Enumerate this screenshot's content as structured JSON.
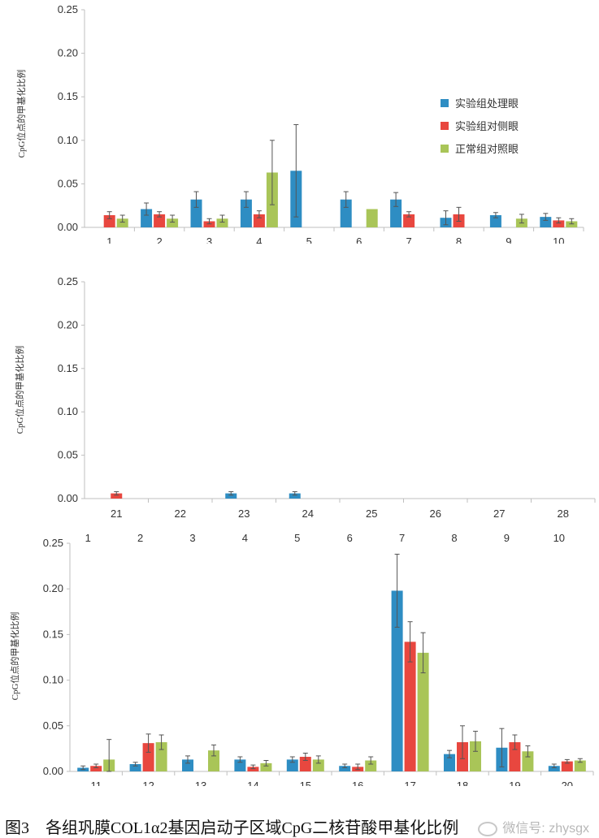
{
  "colors": {
    "s1": "#2e8dc3",
    "s2": "#e8473f",
    "s3": "#a9c558",
    "axis": "#bfbfbf",
    "err": "#555555"
  },
  "legend": [
    "实验组处理眼",
    "实验组对侧眼",
    "正常组对照眼"
  ],
  "caption": "图3　各组巩膜COL1α2基因启动子区域CpG二核苷酸甲基化比例",
  "watermark": "微信号: zhysgx",
  "chart_data": [
    {
      "type": "bar",
      "title": "",
      "ylabel": "CpG位点的甲基化比例",
      "ylim": [
        0,
        0.25
      ],
      "yticks": [
        "0.00",
        "0.05",
        "0.10",
        "0.15",
        "0.20",
        "0.25"
      ],
      "categories": [
        "1",
        "2",
        "3",
        "4",
        "5",
        "6",
        "7",
        "8",
        "9",
        "10"
      ],
      "series": [
        {
          "name": "实验组处理眼",
          "values": [
            null,
            0.021,
            0.032,
            0.032,
            0.065,
            0.032,
            0.032,
            0.011,
            0.014,
            0.012
          ],
          "errors": [
            0,
            0.007,
            0.009,
            0.009,
            0.053,
            0.009,
            0.008,
            0.008,
            0.003,
            0.004
          ]
        },
        {
          "name": "实验组对侧眼",
          "values": [
            0.014,
            0.015,
            0.007,
            0.015,
            null,
            null,
            0.015,
            0.015,
            null,
            0.008
          ],
          "errors": [
            0.004,
            0.003,
            0.003,
            0.004,
            0,
            0,
            0.003,
            0.008,
            0,
            0.003
          ]
        },
        {
          "name": "正常组对照眼",
          "values": [
            0.01,
            0.01,
            0.01,
            0.063,
            null,
            0.021,
            null,
            null,
            0.01,
            0.007
          ],
          "errors": [
            0.004,
            0.004,
            0.004,
            0.037,
            0,
            0,
            0,
            0,
            0.005,
            0.003
          ]
        }
      ],
      "legend_position": "top-right"
    },
    {
      "type": "bar",
      "title": "",
      "ylabel": "CpG位点的甲基化比例",
      "ylim": [
        0,
        0.25
      ],
      "yticks": [
        "0.00",
        "0.05",
        "0.10",
        "0.15",
        "0.20",
        "0.25"
      ],
      "categories": [
        "21",
        "22",
        "23",
        "24",
        "25",
        "26",
        "27",
        "28"
      ],
      "series": [
        {
          "name": "实验组处理眼",
          "values": [
            null,
            null,
            0.006,
            0.006,
            null,
            null,
            null,
            null
          ],
          "errors": [
            0,
            0,
            0.002,
            0.002,
            0,
            0,
            0,
            0
          ]
        },
        {
          "name": "实验组对侧眼",
          "values": [
            0.006,
            null,
            null,
            null,
            null,
            null,
            null,
            null
          ],
          "errors": [
            0.002,
            0,
            0,
            0,
            0,
            0,
            0,
            0
          ]
        },
        {
          "name": "正常组对照眼",
          "values": [
            null,
            null,
            null,
            null,
            null,
            null,
            null,
            null
          ],
          "errors": [
            0,
            0,
            0,
            0,
            0,
            0,
            0,
            0
          ]
        }
      ]
    },
    {
      "type": "bar",
      "title": "",
      "ylabel": "CpG位点的甲基化比例",
      "ylim": [
        0,
        0.25
      ],
      "yticks": [
        "0.00",
        "0.05",
        "0.10",
        "0.15",
        "0.20",
        "0.25"
      ],
      "top_labels": [
        "1",
        "2",
        "3",
        "4",
        "5",
        "6",
        "7",
        "8",
        "9",
        "10"
      ],
      "categories": [
        "11",
        "12",
        "13",
        "14",
        "15",
        "16",
        "17",
        "18",
        "19",
        "20"
      ],
      "series": [
        {
          "name": "实验组处理眼",
          "values": [
            0.004,
            0.008,
            0.013,
            0.013,
            0.013,
            0.006,
            0.198,
            0.019,
            0.026,
            0.006
          ],
          "errors": [
            0.002,
            0.002,
            0.004,
            0.003,
            0.003,
            0.002,
            0.04,
            0.004,
            0.021,
            0.002
          ]
        },
        {
          "name": "实验组对侧眼",
          "values": [
            0.006,
            0.031,
            null,
            0.005,
            0.016,
            0.005,
            0.142,
            0.032,
            0.032,
            0.011
          ],
          "errors": [
            0.002,
            0.01,
            0,
            0.002,
            0.004,
            0.003,
            0.022,
            0.018,
            0.008,
            0.002
          ]
        },
        {
          "name": "正常组对照眼",
          "values": [
            0.013,
            0.032,
            0.023,
            0.009,
            0.013,
            0.012,
            0.13,
            0.033,
            0.022,
            0.012
          ],
          "errors": [
            0.022,
            0.008,
            0.006,
            0.003,
            0.004,
            0.004,
            0.022,
            0.011,
            0.006,
            0.002
          ]
        }
      ]
    }
  ]
}
